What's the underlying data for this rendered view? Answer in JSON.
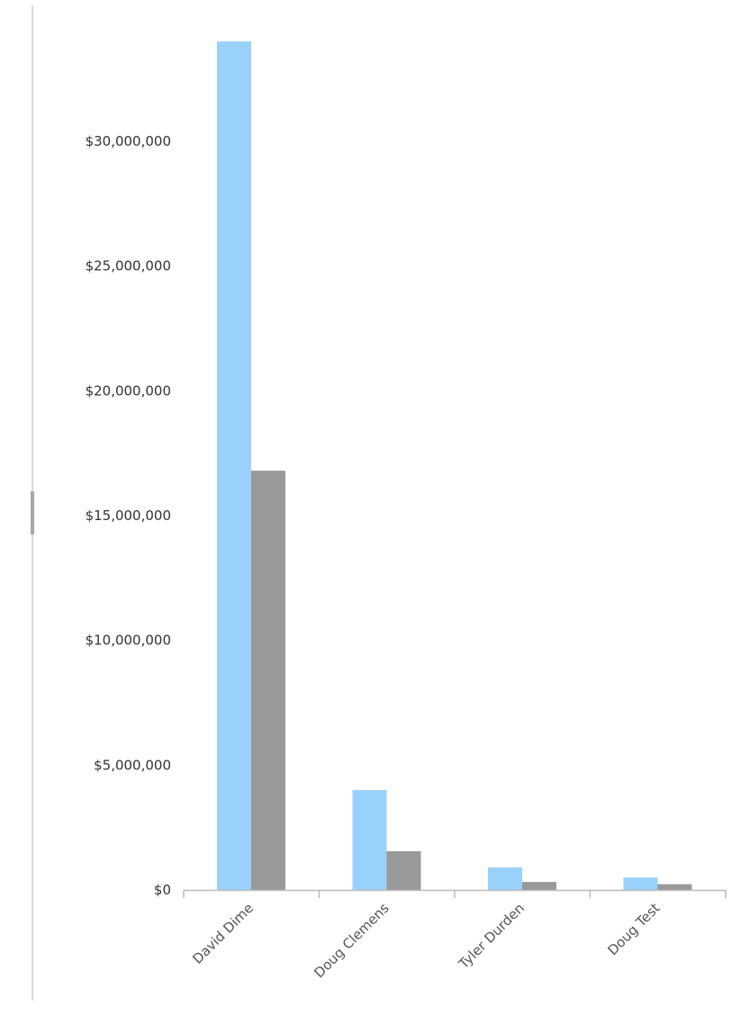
{
  "chart_data": {
    "type": "bar",
    "categories": [
      "David Dime",
      "Doug Clemens",
      "Tyler Durden",
      "Doug Test"
    ],
    "series": [
      {
        "values": [
          34000000,
          4000000,
          900000,
          500000
        ],
        "color": "#99d1fa"
      },
      {
        "values": [
          16800000,
          1550000,
          320000,
          230000
        ],
        "color": "#999999"
      }
    ],
    "ytick_values": [
      0,
      5000000,
      10000000,
      15000000,
      20000000,
      25000000,
      30000000
    ],
    "ytick_labels": [
      "$0",
      "$5,000,000",
      "$10,000,000",
      "$15,000,000",
      "$20,000,000",
      "$25,000,000",
      "$30,000,000"
    ],
    "ylim": [
      0,
      34000000
    ],
    "grid": false,
    "legend": "none",
    "axis_color": "#bbbbbb"
  }
}
